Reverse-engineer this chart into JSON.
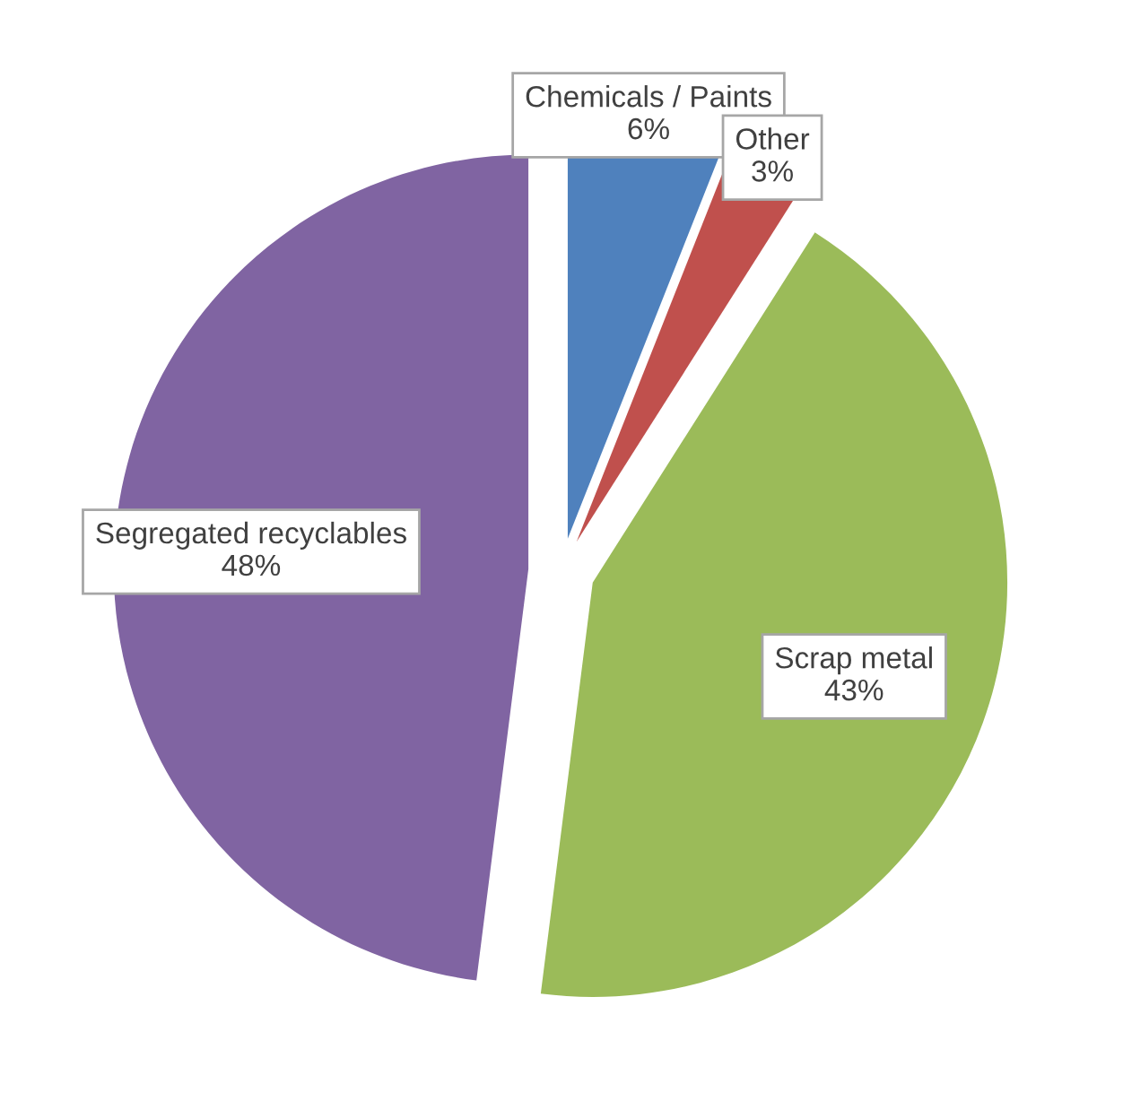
{
  "chart_data": {
    "type": "pie",
    "categories": [
      "Chemicals / Paints",
      "Other",
      "Scrap metal",
      "Segregated recyclables"
    ],
    "values": [
      6,
      3,
      43,
      48
    ],
    "colors": [
      "#4f81bd",
      "#c0504d",
      "#9bbb59",
      "#8064a2"
    ],
    "value_labels": [
      "6%",
      "3%",
      "43%",
      "48%"
    ]
  }
}
